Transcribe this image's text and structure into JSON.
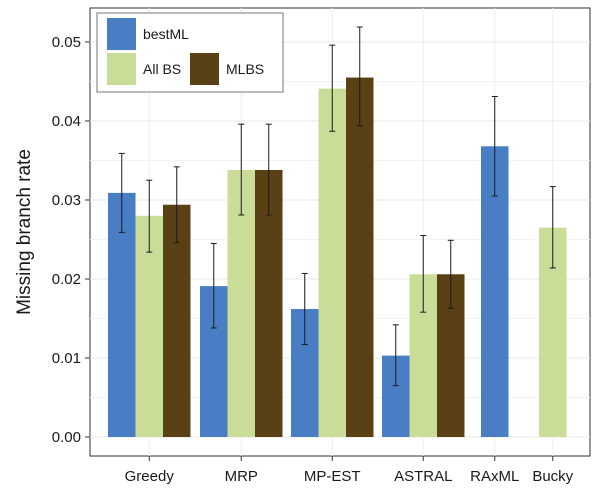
{
  "chart_data": {
    "type": "bar",
    "ylabel": "Missing branch rate",
    "xlabel": "",
    "ylim": [
      0,
      0.053
    ],
    "yticks": [
      "0.00",
      "0.01",
      "0.02",
      "0.03",
      "0.04",
      "0.05"
    ],
    "grid": true,
    "legend_position": "top-left",
    "categories": [
      "Greedy",
      "MRP",
      "MP-EST",
      "ASTRAL",
      "RAxML",
      "Bucky"
    ],
    "series": [
      {
        "name": "bestML",
        "color": "#4a7ec4",
        "values": [
          0.0309,
          0.0191,
          0.0162,
          0.0103,
          0.0368,
          null
        ],
        "error_low": [
          0.0259,
          0.0138,
          0.0117,
          0.0065,
          0.0305,
          null
        ],
        "error_high": [
          0.0359,
          0.0245,
          0.0207,
          0.0142,
          0.0431,
          null
        ]
      },
      {
        "name": "All BS",
        "color": "#c9dd99",
        "values": [
          0.028,
          0.0338,
          0.0441,
          0.0206,
          null,
          0.0265
        ],
        "error_low": [
          0.0234,
          0.0281,
          0.0387,
          0.0158,
          null,
          0.0214
        ],
        "error_high": [
          0.0325,
          0.0396,
          0.0496,
          0.0255,
          null,
          0.0317
        ]
      },
      {
        "name": "MLBS",
        "color": "#5a4015",
        "values": [
          0.0294,
          0.0338,
          0.0455,
          0.0206,
          null,
          null
        ],
        "error_low": [
          0.0246,
          0.0281,
          0.0394,
          0.0163,
          null,
          null
        ],
        "error_high": [
          0.0342,
          0.0396,
          0.0519,
          0.0249,
          null,
          null
        ]
      }
    ]
  }
}
